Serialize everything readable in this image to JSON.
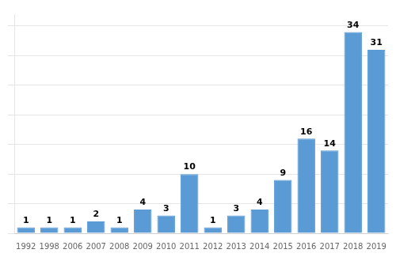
{
  "chart_data": {
    "type": "bar",
    "categories": [
      "1992",
      "1998",
      "2006",
      "2007",
      "2008",
      "2009",
      "2010",
      "2011",
      "2012",
      "2013",
      "2014",
      "2015",
      "2016",
      "2017",
      "2018",
      "2019"
    ],
    "values": [
      1,
      1,
      1,
      2,
      1,
      4,
      3,
      10,
      1,
      3,
      4,
      9,
      16,
      14,
      34,
      31
    ],
    "color": "#5B9BD5",
    "ylim": [
      0,
      37
    ],
    "yticks": [
      0,
      5,
      10,
      15,
      20,
      25,
      30,
      35
    ],
    "grid": true,
    "data_labels": true,
    "tick_labels": "x"
  }
}
